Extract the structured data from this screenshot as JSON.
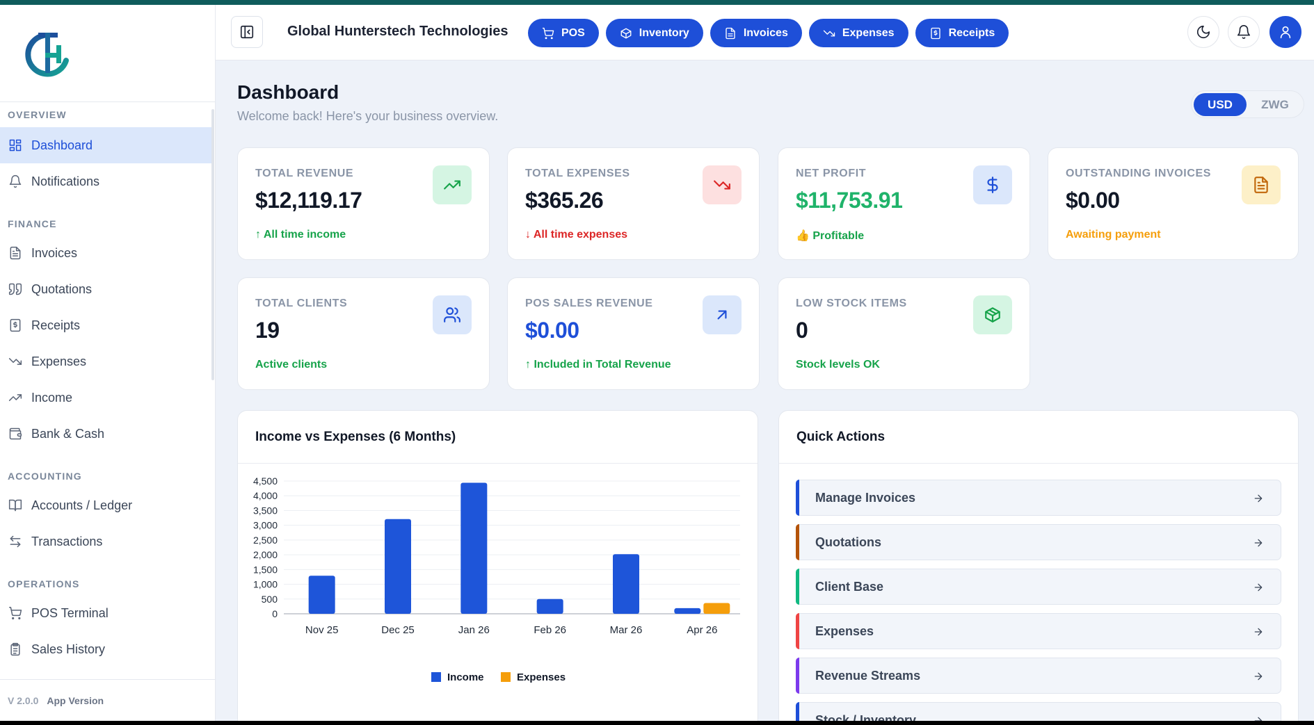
{
  "header": {
    "company": "Global Hunterstech Technologies",
    "pills": [
      "POS",
      "Inventory",
      "Invoices",
      "Expenses",
      "Receipts"
    ]
  },
  "sidebar": {
    "sections": {
      "overview": "OVERVIEW",
      "finance": "FINANCE",
      "accounting": "ACCOUNTING",
      "operations": "OPERATIONS"
    },
    "items": {
      "dashboard": "Dashboard",
      "notifications": "Notifications",
      "invoices": "Invoices",
      "quotations": "Quotations",
      "receipts": "Receipts",
      "expenses": "Expenses",
      "income": "Income",
      "bank": "Bank & Cash",
      "accounts": "Accounts / Ledger",
      "transactions": "Transactions",
      "pos": "POS Terminal",
      "sales": "Sales History"
    },
    "version": "V 2.0.0",
    "version_label": "App Version"
  },
  "page": {
    "title": "Dashboard",
    "subtitle": "Welcome back! Here's your business overview.",
    "currency": [
      "USD",
      "ZWG"
    ]
  },
  "stats": {
    "revenue": {
      "label": "TOTAL REVENUE",
      "value": "$12,119.17",
      "note": "↑ All time income"
    },
    "expenses": {
      "label": "TOTAL EXPENSES",
      "value": "$365.26",
      "note": "↓ All time expenses"
    },
    "profit": {
      "label": "NET PROFIT",
      "value": "$11,753.91",
      "note": "👍 Profitable"
    },
    "outstanding": {
      "label": "OUTSTANDING INVOICES",
      "value": "$0.00",
      "note": "Awaiting payment"
    },
    "clients": {
      "label": "TOTAL CLIENTS",
      "value": "19",
      "note": "Active clients"
    },
    "pos": {
      "label": "POS SALES REVENUE",
      "value": "$0.00",
      "note": "↑ Included in Total Revenue"
    },
    "stock": {
      "label": "LOW STOCK ITEMS",
      "value": "0",
      "note": "Stock levels OK"
    }
  },
  "quick_actions": {
    "title": "Quick Actions",
    "items": [
      "Manage Invoices",
      "Quotations",
      "Client Base",
      "Expenses",
      "Revenue Streams",
      "Stock / Inventory"
    ]
  },
  "chart_data": {
    "type": "bar",
    "title": "Income vs Expenses (6 Months)",
    "categories": [
      "Nov 25",
      "Dec 25",
      "Jan 26",
      "Feb 26",
      "Mar 26",
      "Apr 26"
    ],
    "series": [
      {
        "name": "Income",
        "color": "#1e55d9",
        "values": [
          1290,
          3210,
          4440,
          500,
          2020,
          190
        ]
      },
      {
        "name": "Expenses",
        "color": "#f59e0b",
        "values": [
          0,
          0,
          0,
          0,
          0,
          365
        ]
      }
    ],
    "yticks": [
      "0",
      "500",
      "1,000",
      "1,500",
      "2,000",
      "2,500",
      "3,000",
      "3,500",
      "4,000",
      "4,500"
    ],
    "ylim": [
      0,
      4500
    ],
    "xlabel": "",
    "ylabel": "",
    "legend": "bottom"
  }
}
